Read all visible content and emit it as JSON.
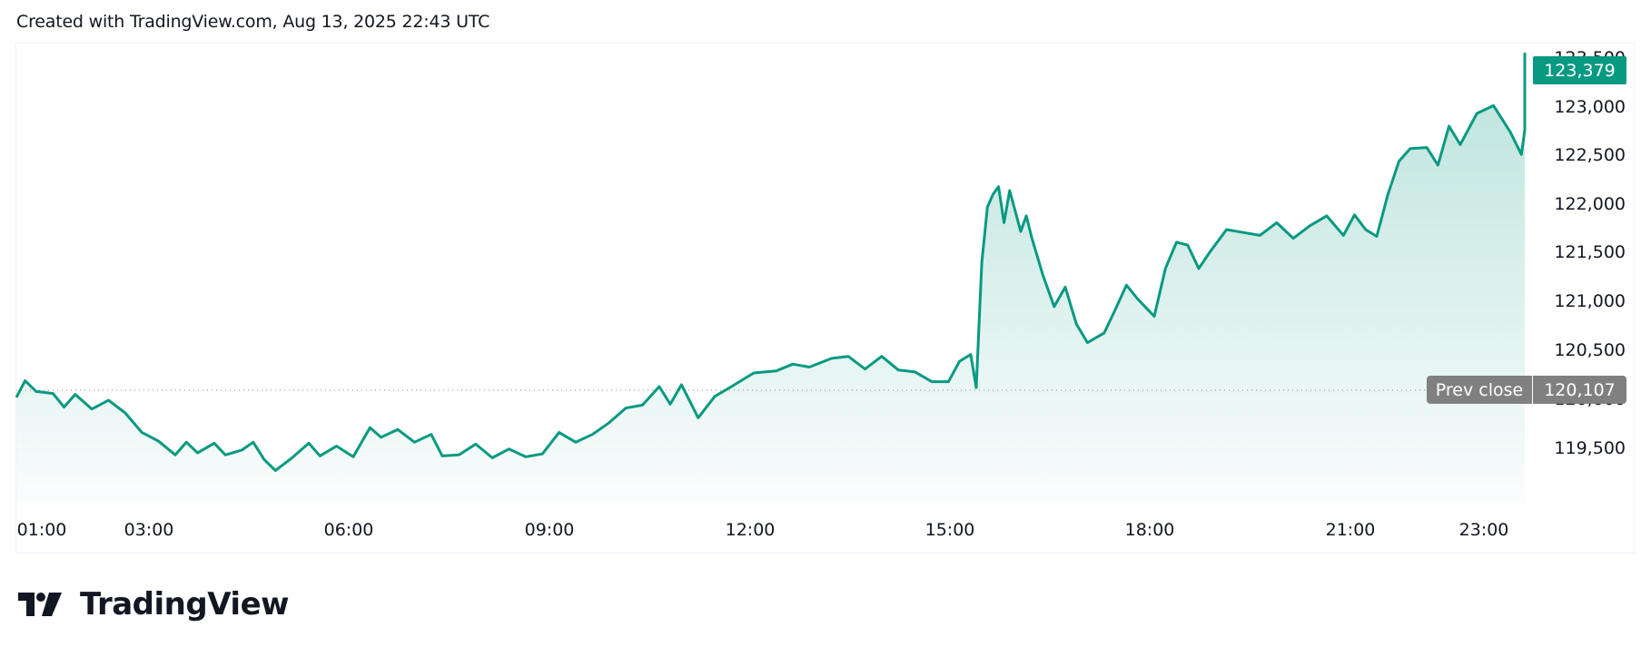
{
  "header": {
    "caption": "Created with TradingView.com, Aug 13, 2025 22:43 UTC"
  },
  "footer": {
    "logo_text": "TradingView",
    "logo_icon": "tradingview-logo-icon"
  },
  "colors": {
    "line": "#089981",
    "fill_top": "#c5e8e0",
    "fill_bottom": "#ffffff",
    "prev_close_badge": "#808080",
    "last_price_badge": "#089981"
  },
  "price_labels": {
    "last_price": "123,379",
    "prev_close_label": "Prev close",
    "prev_close_value": "120,107"
  },
  "chart_data": {
    "type": "area",
    "title": "",
    "xlabel": "",
    "ylabel": "",
    "x_tick_labels": [
      "01:00",
      "03:00",
      "06:00",
      "09:00",
      "12:00",
      "15:00",
      "18:00",
      "21:00",
      "23:00"
    ],
    "y_tick_labels": [
      "119,500",
      "120,000",
      "120,500",
      "121,000",
      "121,500",
      "122,000",
      "122,500",
      "123,000",
      "123,500"
    ],
    "ylim": [
      119100,
      123550
    ],
    "grid": false,
    "legend": "none",
    "reference_lines": [
      {
        "name": "Prev close",
        "value": 120107,
        "style": "dotted"
      }
    ],
    "last_value": 123379,
    "series": [
      {
        "name": "Price",
        "points": [
          [
            "00:35",
            120020
          ],
          [
            "00:45",
            120190
          ],
          [
            "00:55",
            120080
          ],
          [
            "01:10",
            120060
          ],
          [
            "01:20",
            119920
          ],
          [
            "01:30",
            120050
          ],
          [
            "01:45",
            119900
          ],
          [
            "02:00",
            119990
          ],
          [
            "02:15",
            119860
          ],
          [
            "02:30",
            119660
          ],
          [
            "02:45",
            119570
          ],
          [
            "03:00",
            119430
          ],
          [
            "03:10",
            119560
          ],
          [
            "03:20",
            119450
          ],
          [
            "03:35",
            119550
          ],
          [
            "03:45",
            119430
          ],
          [
            "04:00",
            119480
          ],
          [
            "04:10",
            119560
          ],
          [
            "04:20",
            119380
          ],
          [
            "04:30",
            119270
          ],
          [
            "04:45",
            119400
          ],
          [
            "05:00",
            119550
          ],
          [
            "05:10",
            119420
          ],
          [
            "05:25",
            119520
          ],
          [
            "05:40",
            119410
          ],
          [
            "05:55",
            119710
          ],
          [
            "06:05",
            119610
          ],
          [
            "06:20",
            119690
          ],
          [
            "06:35",
            119560
          ],
          [
            "06:50",
            119640
          ],
          [
            "07:00",
            119420
          ],
          [
            "07:15",
            119430
          ],
          [
            "07:30",
            119540
          ],
          [
            "07:45",
            119400
          ],
          [
            "08:00",
            119490
          ],
          [
            "08:15",
            119410
          ],
          [
            "08:30",
            119440
          ],
          [
            "08:45",
            119660
          ],
          [
            "09:00",
            119560
          ],
          [
            "09:15",
            119640
          ],
          [
            "09:30",
            119760
          ],
          [
            "09:45",
            119910
          ],
          [
            "10:00",
            119940
          ],
          [
            "10:15",
            120130
          ],
          [
            "10:25",
            119950
          ],
          [
            "10:35",
            120150
          ],
          [
            "10:50",
            119810
          ],
          [
            "11:05",
            120030
          ],
          [
            "11:20",
            120130
          ],
          [
            "11:40",
            120270
          ],
          [
            "12:00",
            120290
          ],
          [
            "12:15",
            120360
          ],
          [
            "12:30",
            120330
          ],
          [
            "12:50",
            120420
          ],
          [
            "13:05",
            120440
          ],
          [
            "13:20",
            120310
          ],
          [
            "13:35",
            120440
          ],
          [
            "13:50",
            120300
          ],
          [
            "14:05",
            120280
          ],
          [
            "14:20",
            120180
          ],
          [
            "14:35",
            120180
          ],
          [
            "14:45",
            120390
          ],
          [
            "14:55",
            120460
          ],
          [
            "15:00",
            120120
          ],
          [
            "15:05",
            121400
          ],
          [
            "15:10",
            121970
          ],
          [
            "15:15",
            122100
          ],
          [
            "15:20",
            122180
          ],
          [
            "15:25",
            121810
          ],
          [
            "15:30",
            122140
          ],
          [
            "15:40",
            121720
          ],
          [
            "15:45",
            121880
          ],
          [
            "15:50",
            121650
          ],
          [
            "16:00",
            121270
          ],
          [
            "16:10",
            120950
          ],
          [
            "16:20",
            121150
          ],
          [
            "16:30",
            120770
          ],
          [
            "16:40",
            120580
          ],
          [
            "16:55",
            120680
          ],
          [
            "17:05",
            120920
          ],
          [
            "17:15",
            121170
          ],
          [
            "17:25",
            121030
          ],
          [
            "17:40",
            120850
          ],
          [
            "17:50",
            121340
          ],
          [
            "18:00",
            121610
          ],
          [
            "18:10",
            121580
          ],
          [
            "18:20",
            121340
          ],
          [
            "18:30",
            121510
          ],
          [
            "18:45",
            121740
          ],
          [
            "19:00",
            121710
          ],
          [
            "19:15",
            121680
          ],
          [
            "19:30",
            121810
          ],
          [
            "19:45",
            121650
          ],
          [
            "20:00",
            121780
          ],
          [
            "20:15",
            121880
          ],
          [
            "20:30",
            121680
          ],
          [
            "20:40",
            121890
          ],
          [
            "20:50",
            121740
          ],
          [
            "21:00",
            121670
          ],
          [
            "21:10",
            122100
          ],
          [
            "21:20",
            122440
          ],
          [
            "21:30",
            122570
          ],
          [
            "21:45",
            122580
          ],
          [
            "21:55",
            122400
          ],
          [
            "22:05",
            122800
          ],
          [
            "22:15",
            122610
          ],
          [
            "22:30",
            122930
          ],
          [
            "22:45",
            123010
          ],
          [
            "23:00",
            122740
          ],
          [
            "23:10",
            122510
          ],
          [
            "23:15",
            122760
          ],
          [
            "23:25",
            122880
          ],
          [
            "23:35",
            123040
          ],
          [
            "23:45",
            123120
          ],
          [
            "23:50",
            123540
          ],
          [
            "23:52",
            123379
          ]
        ]
      }
    ]
  }
}
